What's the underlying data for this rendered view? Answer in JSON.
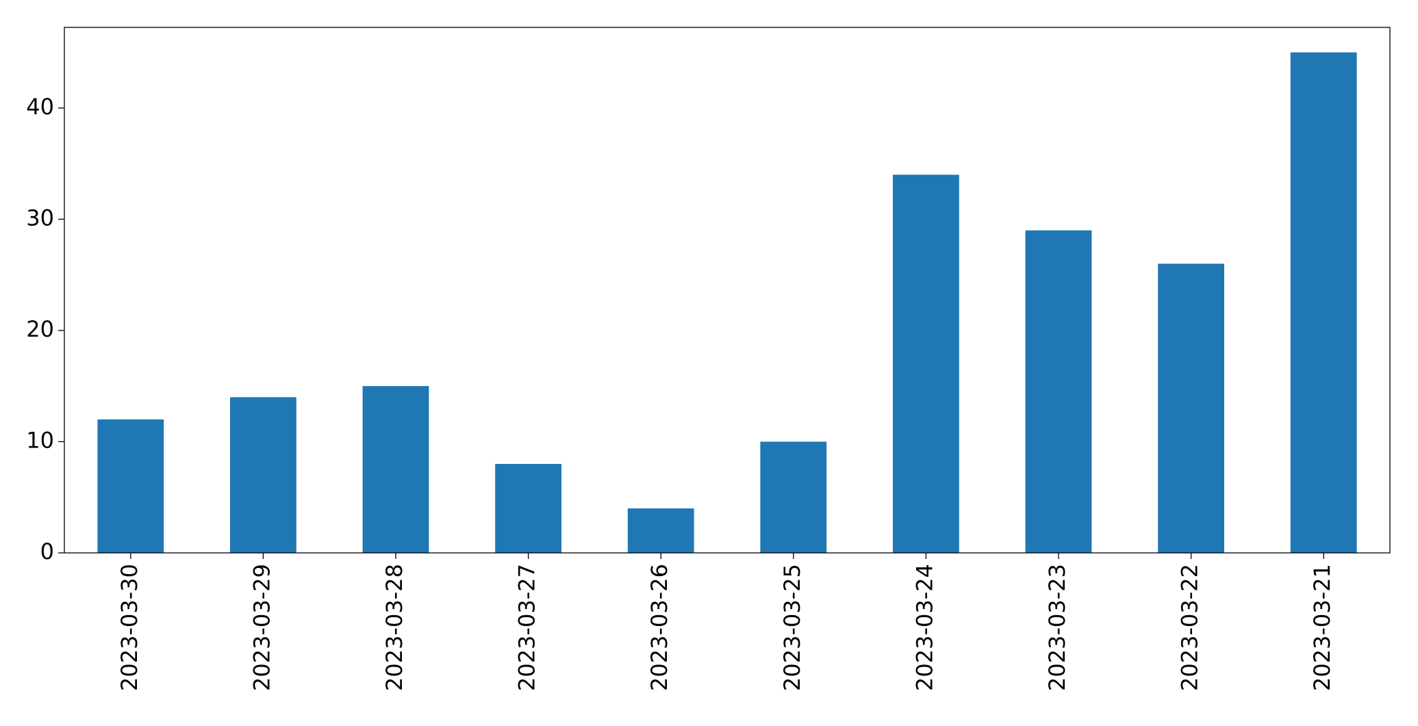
{
  "chart_data": {
    "type": "bar",
    "categories": [
      "2023-03-30",
      "2023-03-29",
      "2023-03-28",
      "2023-03-27",
      "2023-03-26",
      "2023-03-25",
      "2023-03-24",
      "2023-03-23",
      "2023-03-22",
      "2023-03-21"
    ],
    "values": [
      12,
      14,
      15,
      8,
      4,
      10,
      34,
      29,
      26,
      45
    ],
    "color": "#1f77b4",
    "ylim": [
      0,
      47.25
    ],
    "yticks": [
      0,
      10,
      20,
      30,
      40
    ],
    "grid": false
  }
}
